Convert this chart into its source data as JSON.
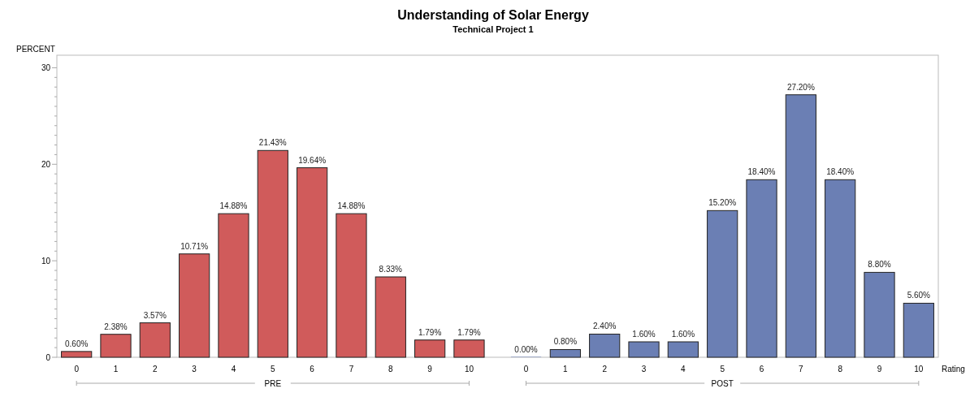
{
  "chart_data": {
    "type": "bar",
    "title": "Understanding of Solar Energy",
    "subtitle": "Technical Project 1",
    "ylabel": "PERCENT",
    "xlabel": "Rating",
    "categories": [
      "0",
      "1",
      "2",
      "3",
      "4",
      "5",
      "6",
      "7",
      "8",
      "9",
      "10",
      "0",
      "1",
      "2",
      "3",
      "4",
      "5",
      "6",
      "7",
      "8",
      "9",
      "10"
    ],
    "values": [
      0.6,
      2.38,
      3.57,
      10.71,
      14.88,
      21.43,
      19.64,
      14.88,
      8.33,
      1.79,
      1.79,
      0.0,
      0.8,
      2.4,
      1.6,
      1.6,
      15.2,
      18.4,
      27.2,
      18.4,
      8.8,
      5.6
    ],
    "value_labels": [
      "0.60%",
      "2.38%",
      "3.57%",
      "10.71%",
      "14.88%",
      "21.43%",
      "19.64%",
      "14.88%",
      "8.33%",
      "1.79%",
      "1.79%",
      "0.00%",
      "0.80%",
      "2.40%",
      "1.60%",
      "1.60%",
      "15.20%",
      "18.40%",
      "27.20%",
      "18.40%",
      "8.80%",
      "5.60%"
    ],
    "colors": [
      "#d05b5b",
      "#d05b5b",
      "#d05b5b",
      "#d05b5b",
      "#d05b5b",
      "#d05b5b",
      "#d05b5b",
      "#d05b5b",
      "#d05b5b",
      "#d05b5b",
      "#d05b5b",
      "#6b7fb4",
      "#6b7fb4",
      "#6b7fb4",
      "#6b7fb4",
      "#6b7fb4",
      "#6b7fb4",
      "#6b7fb4",
      "#6b7fb4",
      "#6b7fb4",
      "#6b7fb4",
      "#6b7fb4"
    ],
    "annotations": [
      "PRE",
      "POST"
    ],
    "ylim": [
      0,
      31.3
    ],
    "yticks": [
      0,
      {
        "value": 1,
        "label": null
      },
      {
        "value": 2,
        "label": null
      },
      {
        "value": 3,
        "label": null
      },
      {
        "value": 4,
        "label": null
      },
      {
        "value": 5,
        "label": null
      },
      {
        "value": 6,
        "label": null
      },
      {
        "value": 7,
        "label": null
      },
      {
        "value": 8,
        "label": null
      },
      {
        "value": 9,
        "label": null
      },
      10,
      {
        "value": 11,
        "label": null
      },
      {
        "value": 12,
        "label": null
      },
      {
        "value": 13,
        "label": null
      },
      {
        "value": 14,
        "label": null
      },
      {
        "value": 15,
        "label": null
      },
      {
        "value": 16,
        "label": null
      },
      {
        "value": 17,
        "label": null
      },
      {
        "value": 18,
        "label": null
      },
      {
        "value": 19,
        "label": null
      },
      20,
      {
        "value": 21,
        "label": null
      },
      {
        "value": 22,
        "label": null
      },
      {
        "value": 23,
        "label": null
      },
      {
        "value": 24,
        "label": null
      },
      {
        "value": 25,
        "label": null
      },
      {
        "value": 26,
        "label": null
      },
      {
        "value": 27,
        "label": null
      },
      {
        "value": 28,
        "label": null
      },
      {
        "value": 29,
        "label": null
      },
      30
    ]
  }
}
